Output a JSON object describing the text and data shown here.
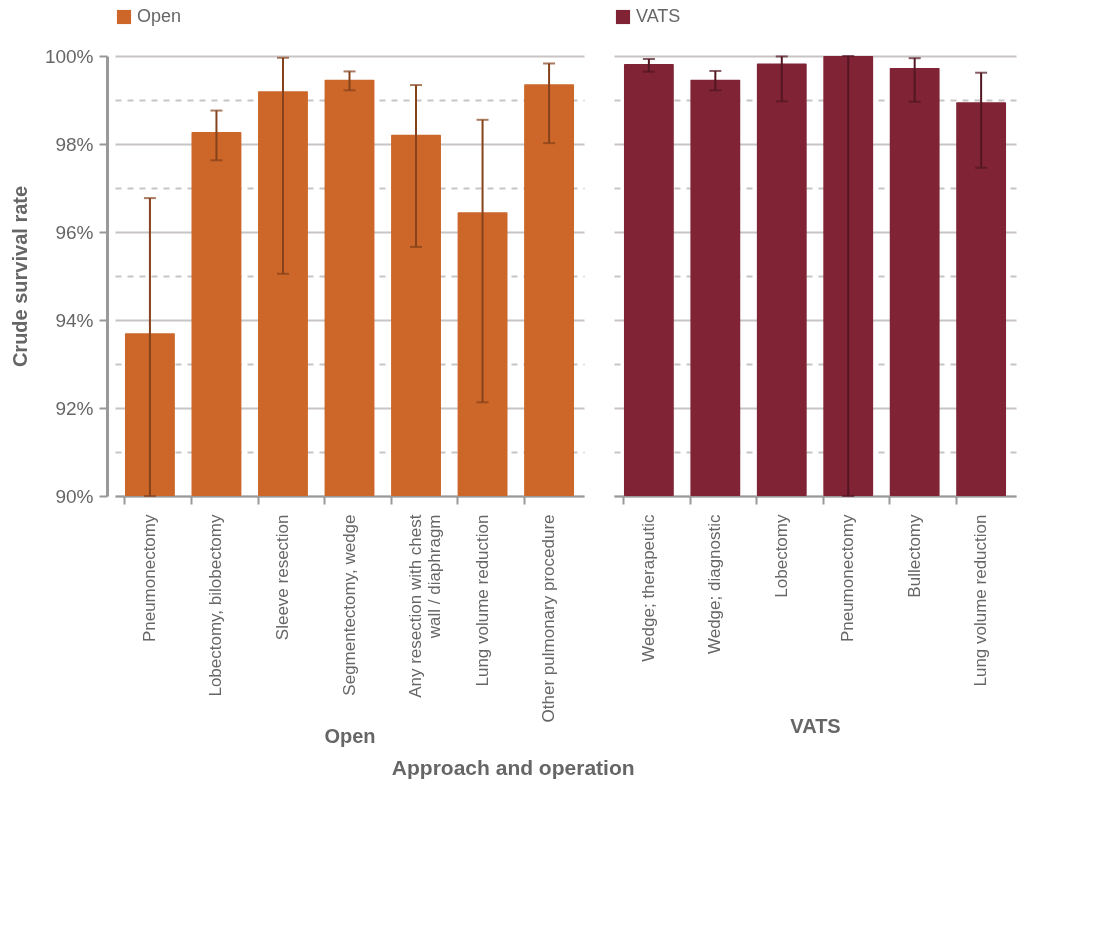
{
  "chart_data": [
    {
      "type": "bar",
      "categories": [
        "Pneumonectomy",
        "Lobectomy, bilobectomy",
        "Sleeve resection",
        "Segmentectomy, wedge",
        "Any resection with chest wall / diaphragm",
        "Lung volume reduction",
        "Other pulmonary procedure"
      ],
      "series": [
        {
          "name": "Open",
          "color": "#cc6629",
          "values": [
            93.7,
            98.27,
            99.2,
            99.46,
            98.21,
            96.45,
            99.36
          ],
          "errors": [
            [
              90,
              96.77
            ],
            [
              97.63,
              98.76
            ],
            [
              95.05,
              99.96
            ],
            [
              99.22,
              99.65
            ],
            [
              95.66,
              99.34
            ],
            [
              92.13,
              98.55
            ],
            [
              98.02,
              99.83
            ]
          ]
        }
      ],
      "xlabel": "Open",
      "ylabel": "Crude survival rate",
      "ylim": [
        90,
        100
      ],
      "yticks": [
        {
          "value": 90,
          "label": "90%"
        },
        {
          "value": 91,
          "label": null
        },
        {
          "value": 92,
          "label": "92%"
        },
        {
          "value": 93,
          "label": null
        },
        {
          "value": 94,
          "label": "94%"
        },
        {
          "value": 95,
          "label": null
        },
        {
          "value": 96,
          "label": "96%"
        },
        {
          "value": 97,
          "label": null
        },
        {
          "value": 98,
          "label": "98%"
        },
        {
          "value": 99,
          "label": null
        },
        {
          "value": 100,
          "label": "100%"
        }
      ],
      "grid": "y",
      "legend": "top",
      "annotations": [
        "Approach and operation"
      ]
    },
    {
      "type": "bar",
      "categories": [
        "Wedge; therapeutic",
        "Wedge; diagnostic",
        "Lobectomy",
        "Pneumonectomy",
        "Bullectomy",
        "Lung volume reduction"
      ],
      "series": [
        {
          "name": "VATS",
          "color": "#7f2335",
          "values": [
            99.82,
            99.46,
            99.83,
            100,
            99.73,
            98.95
          ],
          "errors": [
            [
              99.64,
              99.93
            ],
            [
              99.22,
              99.66
            ],
            [
              98.97,
              99.99
            ],
            [
              90,
              100
            ],
            [
              98.96,
              99.95
            ],
            [
              97.46,
              99.62
            ]
          ]
        }
      ],
      "xlabel": "VATS",
      "ylim": [
        90,
        100
      ],
      "yticks": [
        {
          "value": 90,
          "label": null
        },
        {
          "value": 91,
          "label": null
        },
        {
          "value": 92,
          "label": null
        },
        {
          "value": 93,
          "label": null
        },
        {
          "value": 94,
          "label": null
        },
        {
          "value": 95,
          "label": null
        },
        {
          "value": 96,
          "label": null
        },
        {
          "value": 97,
          "label": null
        },
        {
          "value": 98,
          "label": null
        },
        {
          "value": 99,
          "label": null
        },
        {
          "value": 100,
          "label": null
        }
      ],
      "grid": "y",
      "legend": "top",
      "tick_labels": "x"
    }
  ]
}
